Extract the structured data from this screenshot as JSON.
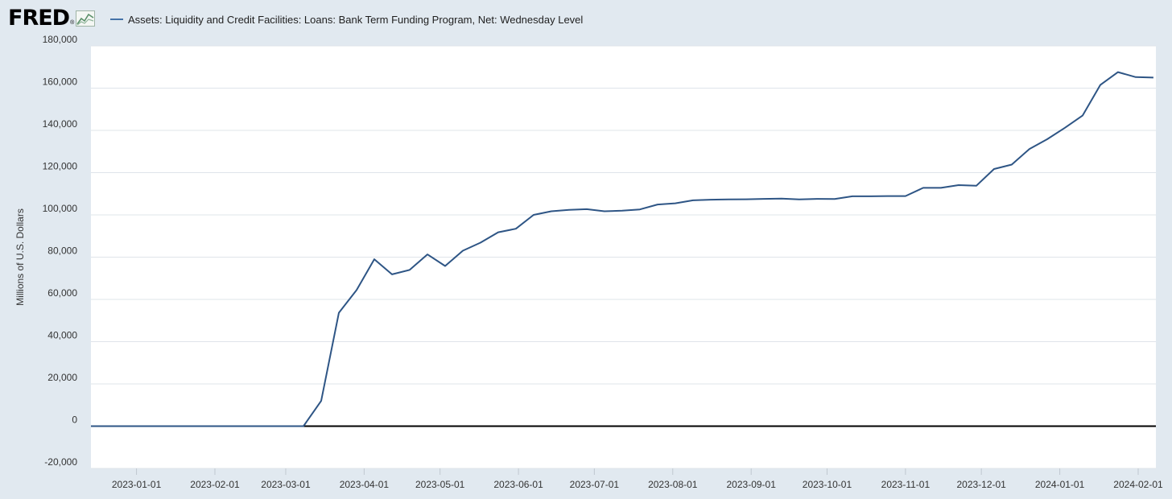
{
  "brand": {
    "logo_text": "FRED",
    "registered_mark": "®",
    "logo_icon": "line-chart-icon"
  },
  "colors": {
    "page_background": "#e1e9f0",
    "plot_background": "#ffffff",
    "series_line": "#2e5585",
    "legend_swatch": "#4472a8",
    "grid": "#dfe4ea",
    "zero_line": "#000000",
    "axis_text": "#333333"
  },
  "chart_data": {
    "type": "line",
    "title": "",
    "xlabel": "",
    "ylabel": "Millions of U.S. Dollars",
    "ylim": [
      -20000,
      180000
    ],
    "xlim": [
      "2022-12-14",
      "2024-02-08"
    ],
    "yticks": [
      {
        "value": -20000,
        "label": "-20,000"
      },
      {
        "value": 0,
        "label": "0"
      },
      {
        "value": 20000,
        "label": "20,000"
      },
      {
        "value": 40000,
        "label": "40,000"
      },
      {
        "value": 60000,
        "label": "60,000"
      },
      {
        "value": 80000,
        "label": "80,000"
      },
      {
        "value": 100000,
        "label": "100,000"
      },
      {
        "value": 120000,
        "label": "120,000"
      },
      {
        "value": 140000,
        "label": "140,000"
      },
      {
        "value": 160000,
        "label": "160,000"
      },
      {
        "value": 180000,
        "label": "180,000"
      }
    ],
    "xticks": [
      {
        "date": "2023-01-01",
        "label": "2023-01-01"
      },
      {
        "date": "2023-02-01",
        "label": "2023-02-01"
      },
      {
        "date": "2023-03-01",
        "label": "2023-03-01"
      },
      {
        "date": "2023-04-01",
        "label": "2023-04-01"
      },
      {
        "date": "2023-05-01",
        "label": "2023-05-01"
      },
      {
        "date": "2023-06-01",
        "label": "2023-06-01"
      },
      {
        "date": "2023-07-01",
        "label": "2023-07-01"
      },
      {
        "date": "2023-08-01",
        "label": "2023-08-01"
      },
      {
        "date": "2023-09-01",
        "label": "2023-09-01"
      },
      {
        "date": "2023-10-01",
        "label": "2023-10-01"
      },
      {
        "date": "2023-11-01",
        "label": "2023-11-01"
      },
      {
        "date": "2023-12-01",
        "label": "2023-12-01"
      },
      {
        "date": "2024-01-01",
        "label": "2024-01-01"
      },
      {
        "date": "2024-02-01",
        "label": "2024-02-01"
      }
    ],
    "grid": true,
    "legend": "top-left",
    "zero_line": true,
    "series": [
      {
        "name": "Assets: Liquidity and Credit Facilities: Loans: Bank Term Funding Program, Net: Wednesday Level",
        "points": [
          {
            "x": "2022-12-14",
            "y": 0
          },
          {
            "x": "2023-03-08",
            "y": 0
          },
          {
            "x": "2023-03-15",
            "y": 11943
          },
          {
            "x": "2023-03-22",
            "y": 53669
          },
          {
            "x": "2023-03-29",
            "y": 64403
          },
          {
            "x": "2023-04-05",
            "y": 79023
          },
          {
            "x": "2023-04-12",
            "y": 71837
          },
          {
            "x": "2023-04-19",
            "y": 73982
          },
          {
            "x": "2023-04-26",
            "y": 81300
          },
          {
            "x": "2023-05-03",
            "y": 75799
          },
          {
            "x": "2023-05-10",
            "y": 83054
          },
          {
            "x": "2023-05-17",
            "y": 86849
          },
          {
            "x": "2023-05-24",
            "y": 91776
          },
          {
            "x": "2023-05-31",
            "y": 93445
          },
          {
            "x": "2023-06-07",
            "y": 100000
          },
          {
            "x": "2023-06-14",
            "y": 101700
          },
          {
            "x": "2023-06-21",
            "y": 102400
          },
          {
            "x": "2023-06-28",
            "y": 102700
          },
          {
            "x": "2023-07-05",
            "y": 101700
          },
          {
            "x": "2023-07-12",
            "y": 102000
          },
          {
            "x": "2023-07-19",
            "y": 102600
          },
          {
            "x": "2023-07-26",
            "y": 104900
          },
          {
            "x": "2023-08-02",
            "y": 105500
          },
          {
            "x": "2023-08-09",
            "y": 106900
          },
          {
            "x": "2023-08-16",
            "y": 107200
          },
          {
            "x": "2023-08-23",
            "y": 107300
          },
          {
            "x": "2023-08-30",
            "y": 107400
          },
          {
            "x": "2023-09-06",
            "y": 107600
          },
          {
            "x": "2023-09-13",
            "y": 107700
          },
          {
            "x": "2023-09-20",
            "y": 107300
          },
          {
            "x": "2023-09-27",
            "y": 107600
          },
          {
            "x": "2023-10-04",
            "y": 107500
          },
          {
            "x": "2023-10-11",
            "y": 108800
          },
          {
            "x": "2023-10-18",
            "y": 108800
          },
          {
            "x": "2023-10-25",
            "y": 108900
          },
          {
            "x": "2023-11-01",
            "y": 108900
          },
          {
            "x": "2023-11-08",
            "y": 112800
          },
          {
            "x": "2023-11-15",
            "y": 112800
          },
          {
            "x": "2023-11-22",
            "y": 114100
          },
          {
            "x": "2023-11-29",
            "y": 113800
          },
          {
            "x": "2023-12-06",
            "y": 121700
          },
          {
            "x": "2023-12-13",
            "y": 123800
          },
          {
            "x": "2023-12-20",
            "y": 131200
          },
          {
            "x": "2023-12-27",
            "y": 135800
          },
          {
            "x": "2024-01-03",
            "y": 141200
          },
          {
            "x": "2024-01-10",
            "y": 147000
          },
          {
            "x": "2024-01-17",
            "y": 161500
          },
          {
            "x": "2024-01-24",
            "y": 167600
          },
          {
            "x": "2024-01-31",
            "y": 165200
          },
          {
            "x": "2024-02-07",
            "y": 165000
          }
        ]
      }
    ]
  }
}
